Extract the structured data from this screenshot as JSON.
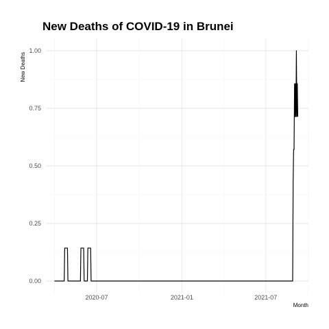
{
  "chart_data": {
    "type": "line",
    "title": "New Deaths of COVID-19 in Brunei",
    "xlabel": "Month",
    "ylabel": "New Deaths",
    "x_ticks": [
      "2020-07",
      "2021-01",
      "2021-07"
    ],
    "y_ticks": [
      "0.00",
      "0.25",
      "0.50",
      "0.75",
      "1.00"
    ],
    "ylim": [
      0,
      1
    ],
    "xlim": [
      "2020-03-15",
      "2021-10-01"
    ],
    "grid": true,
    "legend": "none",
    "series": [
      {
        "color": "#000000",
        "x": [
          "2020-04-01",
          "2020-04-22",
          "2020-04-23",
          "2020-04-29",
          "2020-04-30",
          "2020-05-27",
          "2020-05-28",
          "2020-06-03",
          "2020-06-04",
          "2020-06-11",
          "2020-06-12",
          "2020-06-18",
          "2020-06-19",
          "2021-08-28",
          "2021-08-29",
          "2021-08-30",
          "2021-08-31",
          "2021-09-01",
          "2021-09-02",
          "2021-09-03",
          "2021-09-04",
          "2021-09-05",
          "2021-09-06",
          "2021-09-07",
          "2021-09-08"
        ],
        "values": [
          0,
          0,
          0.143,
          0.143,
          0,
          0,
          0.143,
          0.143,
          0,
          0,
          0.143,
          0.143,
          0,
          0,
          0.429,
          0.571,
          0.571,
          0.857,
          0.714,
          0.857,
          0.714,
          1.0,
          0.714,
          0.857,
          0.714
        ]
      }
    ]
  }
}
